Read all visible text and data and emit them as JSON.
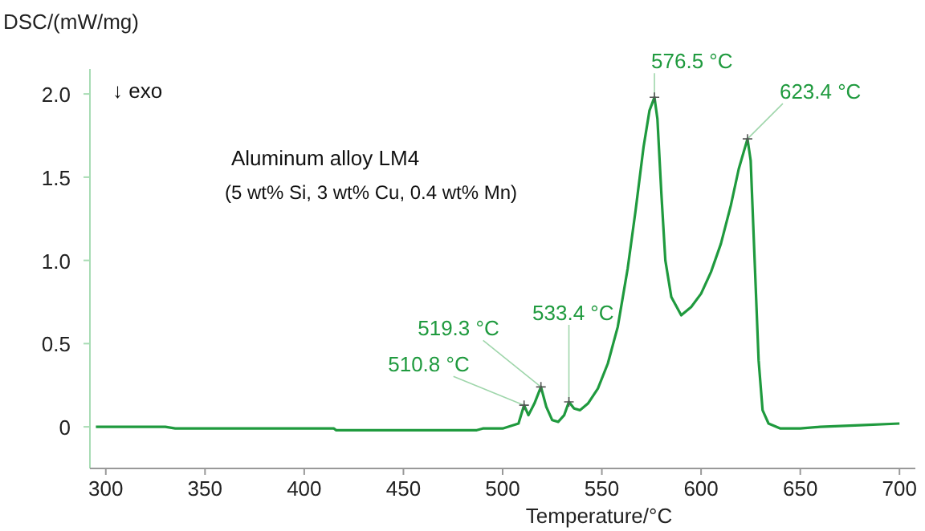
{
  "chart_data": {
    "type": "line",
    "ylabel": "DSC/(mW/mg)",
    "xlabel": "Temperature/°C",
    "xlim": [
      292,
      708
    ],
    "ylim": [
      -0.25,
      2.15
    ],
    "xticks": [
      300,
      350,
      400,
      450,
      500,
      550,
      600,
      650,
      700
    ],
    "yticks": [
      {
        "value": 0,
        "label": "0"
      },
      {
        "value": 0.5,
        "label": "0.5"
      },
      {
        "value": 1,
        "label": "1.0"
      },
      {
        "value": 1.5,
        "label": "1.5"
      },
      {
        "value": 2,
        "label": "2.0"
      }
    ],
    "grid": false,
    "marker": "none",
    "line_style": "solid",
    "series": [
      {
        "color": "#1f9a3e",
        "x": [
          295,
          330,
          335,
          365,
          368,
          415,
          416,
          487,
          490,
          500,
          508,
          510.8,
          513,
          516,
          519.3,
          522,
          525,
          528,
          531,
          533.4,
          536,
          539,
          543,
          548,
          553,
          558,
          563,
          567,
          571,
          574,
          576.5,
          578,
          580,
          582,
          585,
          590,
          595,
          600,
          605,
          610,
          615,
          619,
          623.4,
          625,
          627,
          629,
          631,
          634,
          640,
          650,
          660,
          680,
          700
        ],
        "values": [
          0,
          0,
          -0.01,
          -0.01,
          -0.01,
          -0.01,
          -0.02,
          -0.02,
          -0.01,
          -0.01,
          0.02,
          0.13,
          0.07,
          0.14,
          0.24,
          0.12,
          0.04,
          0.03,
          0.07,
          0.15,
          0.11,
          0.1,
          0.14,
          0.23,
          0.38,
          0.6,
          0.95,
          1.3,
          1.68,
          1.9,
          1.98,
          1.85,
          1.4,
          1.0,
          0.78,
          0.67,
          0.72,
          0.8,
          0.93,
          1.1,
          1.33,
          1.55,
          1.73,
          1.6,
          1.0,
          0.4,
          0.1,
          0.02,
          -0.01,
          -0.01,
          0,
          0.01,
          0.02
        ]
      }
    ],
    "annotations": [
      {
        "text": "510.8 °C",
        "x": 510.8,
        "y": 0.13
      },
      {
        "text": "519.3 °C",
        "x": 519.3,
        "y": 0.24
      },
      {
        "text": "533.4 °C",
        "x": 533.4,
        "y": 0.15
      },
      {
        "text": "576.5 °C",
        "x": 576.5,
        "y": 1.98
      },
      {
        "text": "623.4 °C",
        "x": 623.4,
        "y": 1.73
      },
      "↓ exo",
      "Aluminum alloy LM4",
      "(5 wt% Si, 3 wt% Cu, 0.4 wt% Mn)"
    ]
  }
}
